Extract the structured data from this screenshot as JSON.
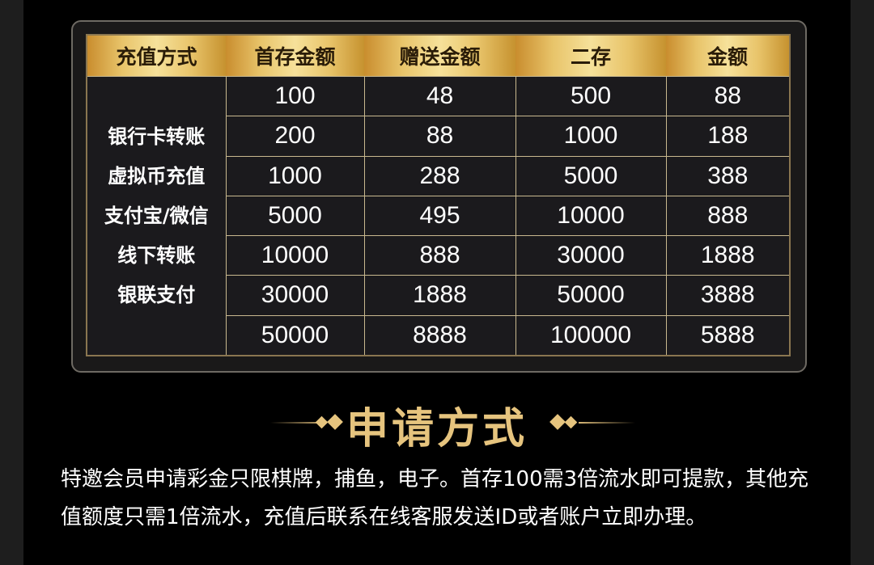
{
  "table": {
    "headers": [
      "充值方式",
      "首存金额",
      "赠送金额",
      "二存",
      "金额"
    ],
    "methods": [
      "银行卡转账",
      "虚拟币充值",
      "支付宝/微信",
      "线下转账",
      "银联支付"
    ],
    "rows": [
      [
        "100",
        "48",
        "500",
        "88"
      ],
      [
        "200",
        "88",
        "1000",
        "188"
      ],
      [
        "1000",
        "288",
        "5000",
        "388"
      ],
      [
        "5000",
        "495",
        "10000",
        "888"
      ],
      [
        "10000",
        "888",
        "30000",
        "1888"
      ],
      [
        "30000",
        "1888",
        "50000",
        "3888"
      ],
      [
        "50000",
        "8888",
        "100000",
        "5888"
      ]
    ]
  },
  "section_title": "申请方式",
  "description": "特邀会员申请彩金只限棋牌，捕鱼，电子。首存100需3倍流水即可提款，其他充值额度只需1倍流水，充值后联系在线客服发送ID或者账户立即办理。",
  "colors": {
    "gold": "#e6c47e",
    "background": "#000000"
  }
}
